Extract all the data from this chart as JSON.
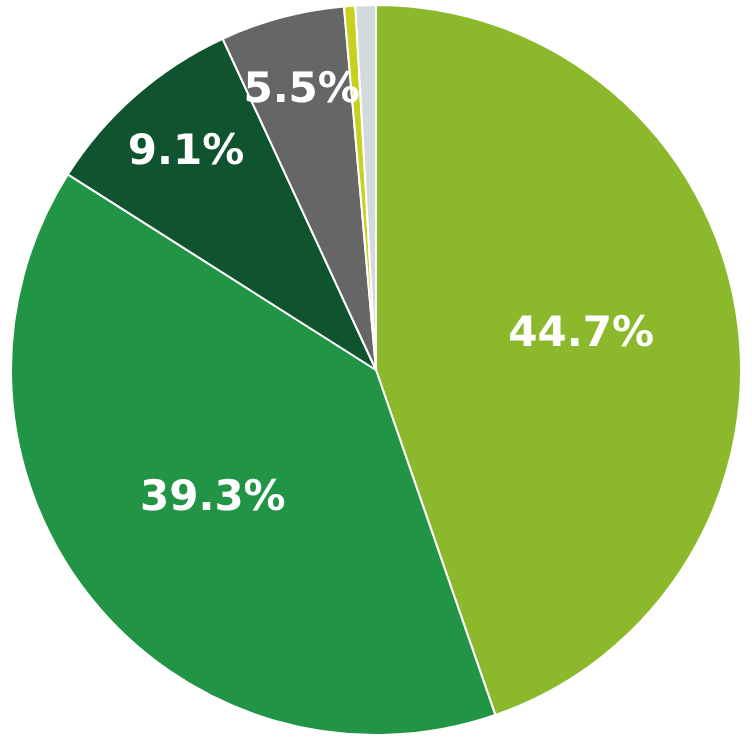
{
  "chart_data": {
    "type": "pie",
    "categories": [
      null,
      null,
      null,
      null,
      null,
      null
    ],
    "values": [
      44.7,
      39.3,
      9.1,
      5.5,
      0.5,
      0.9
    ],
    "colors": [
      "#8cb92b",
      "#229446",
      "#10532f",
      "#666666",
      "#c8d21e",
      "#d3dade"
    ],
    "value_labels": [
      "44.7%",
      "39.3%",
      "9.1%",
      "5.5%",
      null,
      null
    ],
    "legend": false
  }
}
